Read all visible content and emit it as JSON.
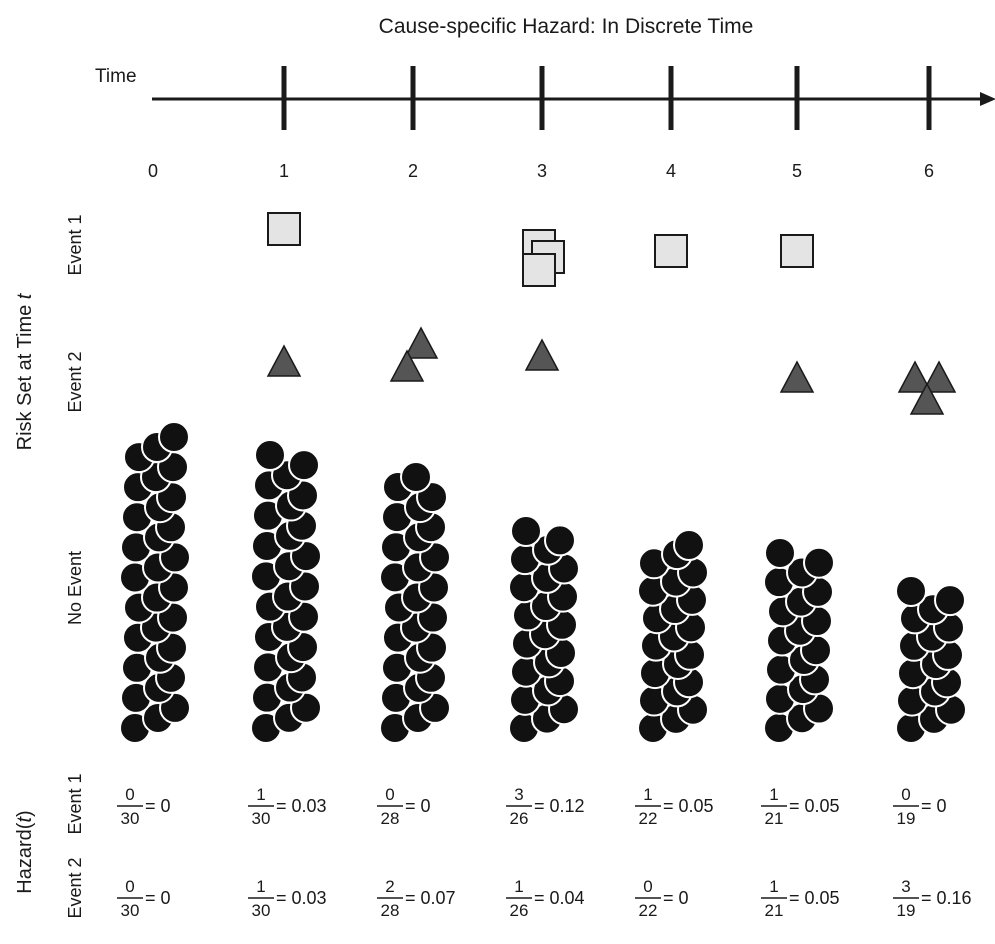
{
  "title": "Cause-specific Hazard: In Discrete Time",
  "axis_label": "Time",
  "time_points": [
    "0",
    "1",
    "2",
    "3",
    "4",
    "5",
    "6"
  ],
  "row_labels": {
    "risk_set": "Risk Set at Time t",
    "risk_set_prefix": "Risk Set at Time ",
    "risk_set_var": "t",
    "event1": "Event 1",
    "event2": "Event 2",
    "no_event": "No Event"
  },
  "hazard_labels": {
    "hazard": "Hazard(t)",
    "hazard_prefix": "Hazard(",
    "hazard_var": "t",
    "hazard_suffix": ")",
    "event1": "Event 1",
    "event2": "Event 2"
  },
  "counts": {
    "event1": [
      0,
      1,
      0,
      3,
      1,
      1,
      0
    ],
    "event2": [
      0,
      1,
      2,
      1,
      0,
      1,
      3
    ],
    "no_event": [
      30,
      28,
      26,
      22,
      21,
      19,
      16
    ]
  },
  "hazard": {
    "event1": [
      {
        "num": "0",
        "den": "30",
        "val": "= 0"
      },
      {
        "num": "1",
        "den": "30",
        "val": "= 0.03"
      },
      {
        "num": "0",
        "den": "28",
        "val": "= 0"
      },
      {
        "num": "3",
        "den": "26",
        "val": "= 0.12"
      },
      {
        "num": "1",
        "den": "22",
        "val": "= 0.05"
      },
      {
        "num": "1",
        "den": "21",
        "val": "= 0.05"
      },
      {
        "num": "0",
        "den": "19",
        "val": "= 0"
      }
    ],
    "event2": [
      {
        "num": "0",
        "den": "30",
        "val": "= 0"
      },
      {
        "num": "1",
        "den": "30",
        "val": "= 0.03"
      },
      {
        "num": "2",
        "den": "28",
        "val": "= 0.07"
      },
      {
        "num": "1",
        "den": "26",
        "val": "= 0.04"
      },
      {
        "num": "0",
        "den": "22",
        "val": "= 0"
      },
      {
        "num": "1",
        "den": "21",
        "val": "= 0.05"
      },
      {
        "num": "3",
        "den": "19",
        "val": "= 0.16"
      }
    ]
  },
  "colors": {
    "axis": "#1a1a1a",
    "square_fill": "#e4e4e4",
    "triangle_fill": "#555555",
    "circle_fill": "#111111",
    "outline": "#1a1a1a"
  }
}
